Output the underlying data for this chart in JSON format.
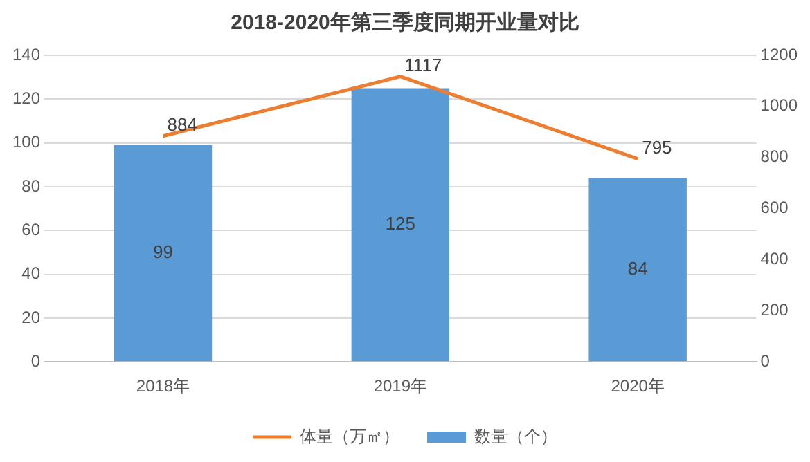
{
  "chart_data": {
    "type": "bar",
    "title": "2018-2020年第三季度同期开业量对比",
    "categories": [
      "2018年",
      "2019年",
      "2020年"
    ],
    "series": [
      {
        "name": "数量（个）",
        "color": "#5b9bd5",
        "values": [
          99,
          125,
          84
        ]
      },
      {
        "name": "体量（万㎡）",
        "type": "line",
        "axis": "y2",
        "color": "#ed7d31",
        "values": [
          884,
          1117,
          795
        ]
      }
    ],
    "ylim": [
      0,
      140
    ],
    "yticks": [
      0,
      20,
      40,
      60,
      80,
      100,
      120,
      140
    ],
    "y2lim": [
      0,
      1200
    ],
    "y2ticks": [
      0,
      200,
      400,
      600,
      800,
      1000,
      1200
    ],
    "grid": "y",
    "legend": "bottom",
    "data_labels": true
  }
}
